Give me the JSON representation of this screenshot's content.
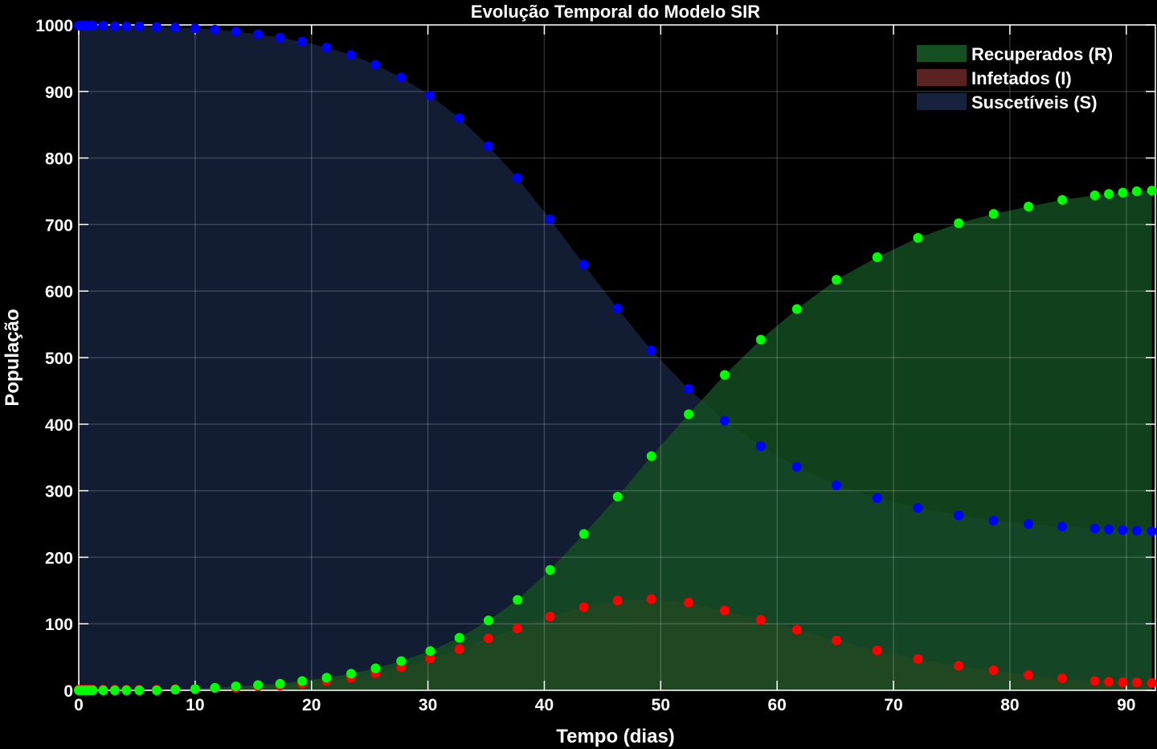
{
  "chart_data": {
    "type": "area",
    "title": "Evolução Temporal do Modelo SIR",
    "xlabel": "Tempo (dias)",
    "ylabel": "População",
    "xlim": [
      0,
      92.5
    ],
    "ylim": [
      0,
      1000
    ],
    "xticks": [
      0,
      10,
      20,
      30,
      40,
      50,
      60,
      70,
      80,
      90
    ],
    "yticks": [
      0,
      100,
      200,
      300,
      400,
      500,
      600,
      700,
      800,
      900,
      1000
    ],
    "grid": true,
    "legend_position": "top-right",
    "x": [
      0,
      0.3,
      0.6,
      0.9,
      1.2,
      2.1,
      3.1,
      4.1,
      5.2,
      6.7,
      8.3,
      10.0,
      11.7,
      13.5,
      15.4,
      17.3,
      19.2,
      21.3,
      23.4,
      25.5,
      27.7,
      30.2,
      32.7,
      35.2,
      37.7,
      40.5,
      43.4,
      46.3,
      49.2,
      52.4,
      55.5,
      58.6,
      61.7,
      65.1,
      68.6,
      72.1,
      75.6,
      78.6,
      81.6,
      84.5,
      87.3,
      88.5,
      89.7,
      90.9,
      92.2
    ],
    "series": [
      {
        "name": "Suscetíveis (S)",
        "key": "S",
        "fill": "#16223e",
        "marker": "#0000ff",
        "values": [
          999,
          999,
          999,
          999,
          999,
          999,
          998,
          998,
          998,
          997,
          996,
          995,
          993,
          990,
          986,
          981,
          975,
          966,
          955,
          940,
          921,
          894,
          860,
          818,
          770,
          708,
          640,
          574,
          511,
          453,
          405,
          367,
          336,
          308,
          289,
          274,
          263,
          255,
          250,
          246,
          243,
          242,
          241,
          240,
          239
        ]
      },
      {
        "name": "Infetados (I)",
        "key": "I",
        "fill": "#5a2222",
        "marker": "#ff0000",
        "values": [
          1,
          1,
          1,
          1,
          1,
          1,
          1,
          1,
          1,
          1,
          2,
          2,
          3,
          4,
          6,
          7,
          10,
          14,
          19,
          26,
          35,
          48,
          62,
          78,
          93,
          111,
          125,
          135,
          137,
          132,
          120,
          106,
          91,
          75,
          60,
          47,
          37,
          30,
          23,
          18,
          14,
          13,
          12,
          12,
          11
        ]
      },
      {
        "name": "Recuperados (R)",
        "key": "R",
        "fill": "#154f22",
        "marker": "#00ff00",
        "values": [
          0,
          0,
          0,
          0,
          0,
          0,
          0,
          0,
          0,
          0,
          1,
          2,
          4,
          6,
          8,
          10,
          14,
          19,
          25,
          33,
          44,
          59,
          79,
          105,
          136,
          181,
          235,
          291,
          352,
          415,
          474,
          527,
          573,
          617,
          651,
          680,
          702,
          716,
          727,
          737,
          744,
          746,
          748,
          750,
          751
        ]
      }
    ],
    "legend_order": [
      "R",
      "I",
      "S"
    ]
  }
}
